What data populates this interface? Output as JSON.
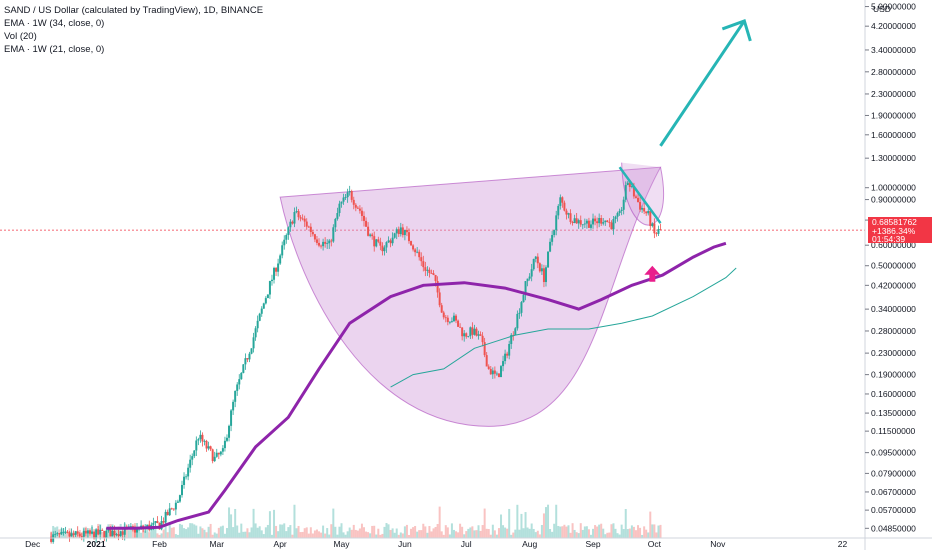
{
  "legend": {
    "title": "SAND / US Dollar (calculated by TradingView), 1D, BINANCE",
    "line2": "EMA · 1W (34, close, 0)",
    "line3": "Vol (20)",
    "line4": "EMA · 1W (21, close, 0)"
  },
  "price_label": {
    "value": "0.68581762",
    "change": "+1386.34%",
    "countdown": "01:54:39"
  },
  "colors": {
    "up": "#26a69a",
    "down": "#ef5350",
    "ema34": "#8e24aa",
    "ema21": "#26a69a",
    "pattern_fill": "#ce93d8",
    "arrow_teal": "#26b5b5",
    "arrow_pink": "#e91e8c",
    "price_tag": "#f23645"
  },
  "chart_data": {
    "type": "candlestick",
    "y_scale": "log",
    "currency": "USD",
    "ylim": [
      0.041,
      5.0
    ],
    "y_ticks": [
      "5.00000000",
      "4.20000000",
      "3.40000000",
      "2.80000000",
      "2.30000000",
      "1.90000000",
      "1.60000000",
      "1.30000000",
      "1.00000000",
      "0.90000000",
      "0.75000000",
      "0.60000000",
      "0.50000000",
      "0.42000000",
      "0.34000000",
      "0.28000000",
      "0.23000000",
      "0.19000000",
      "0.16000000",
      "0.13500000",
      "0.11500000",
      "0.09500000",
      "0.07900000",
      "0.06700000",
      "0.05700000",
      "0.04850000"
    ],
    "y_tick_values": [
      5.0,
      4.2,
      3.4,
      2.8,
      2.3,
      1.9,
      1.6,
      1.3,
      1.0,
      0.9,
      0.75,
      0.6,
      0.5,
      0.42,
      0.34,
      0.28,
      0.23,
      0.19,
      0.16,
      0.135,
      0.115,
      0.095,
      0.079,
      0.067,
      0.057,
      0.0485
    ],
    "x_ticks": [
      "Dec",
      "2021",
      "Feb",
      "Mar",
      "Apr",
      "May",
      "Jun",
      "Jul",
      "Aug",
      "Sep",
      "Oct",
      "Nov",
      "22"
    ],
    "x_tick_dates": [
      "2020-12-01",
      "2021-01-01",
      "2021-02-01",
      "2021-03-01",
      "2021-04-01",
      "2021-05-01",
      "2021-06-01",
      "2021-07-01",
      "2021-08-01",
      "2021-09-01",
      "2021-10-01",
      "2021-11-01",
      "2022-01-01"
    ],
    "last_price": 0.68581762,
    "price_path": [
      [
        "2020-12-10",
        0.045
      ],
      [
        "2021-01-01",
        0.046
      ],
      [
        "2021-01-20",
        0.048
      ],
      [
        "2021-02-01",
        0.05
      ],
      [
        "2021-02-10",
        0.062
      ],
      [
        "2021-02-20",
        0.11
      ],
      [
        "2021-02-28",
        0.09
      ],
      [
        "2021-03-04",
        0.095
      ],
      [
        "2021-03-10",
        0.16
      ],
      [
        "2021-03-18",
        0.25
      ],
      [
        "2021-03-25",
        0.38
      ],
      [
        "2021-04-01",
        0.55
      ],
      [
        "2021-04-08",
        0.8
      ],
      [
        "2021-04-14",
        0.72
      ],
      [
        "2021-04-20",
        0.62
      ],
      [
        "2021-04-25",
        0.6
      ],
      [
        "2021-04-30",
        0.85
      ],
      [
        "2021-05-05",
        0.95
      ],
      [
        "2021-05-10",
        0.82
      ],
      [
        "2021-05-15",
        0.65
      ],
      [
        "2021-05-20",
        0.58
      ],
      [
        "2021-05-25",
        0.63
      ],
      [
        "2021-05-30",
        0.7
      ],
      [
        "2021-06-04",
        0.62
      ],
      [
        "2021-06-10",
        0.5
      ],
      [
        "2021-06-15",
        0.45
      ],
      [
        "2021-06-20",
        0.32
      ],
      [
        "2021-06-25",
        0.31
      ],
      [
        "2021-06-30",
        0.27
      ],
      [
        "2021-07-04",
        0.28
      ],
      [
        "2021-07-08",
        0.26
      ],
      [
        "2021-07-12",
        0.2
      ],
      [
        "2021-07-16",
        0.185
      ],
      [
        "2021-07-20",
        0.22
      ],
      [
        "2021-07-25",
        0.3
      ],
      [
        "2021-07-30",
        0.42
      ],
      [
        "2021-08-04",
        0.54
      ],
      [
        "2021-08-08",
        0.45
      ],
      [
        "2021-08-12",
        0.66
      ],
      [
        "2021-08-16",
        0.9
      ],
      [
        "2021-08-20",
        0.78
      ],
      [
        "2021-08-25",
        0.74
      ],
      [
        "2021-09-01",
        0.73
      ],
      [
        "2021-09-06",
        0.76
      ],
      [
        "2021-09-10",
        0.72
      ],
      [
        "2021-09-14",
        0.78
      ],
      [
        "2021-09-18",
        1.06
      ],
      [
        "2021-09-20",
        0.98
      ],
      [
        "2021-09-24",
        0.85
      ],
      [
        "2021-09-28",
        0.78
      ],
      [
        "2021-10-01",
        0.66
      ],
      [
        "2021-10-04",
        0.686
      ]
    ],
    "ema34_path": [
      [
        "2021-01-06",
        0.0485
      ],
      [
        "2021-01-20",
        0.0485
      ],
      [
        "2021-02-01",
        0.049
      ],
      [
        "2021-02-10",
        0.052
      ],
      [
        "2021-02-25",
        0.056
      ],
      [
        "2021-03-05",
        0.068
      ],
      [
        "2021-03-20",
        0.1
      ],
      [
        "2021-04-05",
        0.13
      ],
      [
        "2021-04-20",
        0.2
      ],
      [
        "2021-05-05",
        0.3
      ],
      [
        "2021-05-25",
        0.38
      ],
      [
        "2021-06-10",
        0.42
      ],
      [
        "2021-06-30",
        0.43
      ],
      [
        "2021-07-20",
        0.41
      ],
      [
        "2021-08-10",
        0.37
      ],
      [
        "2021-08-25",
        0.34
      ],
      [
        "2021-09-05",
        0.37
      ],
      [
        "2021-09-20",
        0.42
      ],
      [
        "2021-10-05",
        0.46
      ],
      [
        "2021-10-20",
        0.54
      ],
      [
        "2021-10-30",
        0.59
      ],
      [
        "2021-11-05",
        0.61
      ]
    ],
    "ema21_path": [
      [
        "2021-05-25",
        0.17
      ],
      [
        "2021-06-05",
        0.19
      ],
      [
        "2021-06-20",
        0.2
      ],
      [
        "2021-07-05",
        0.24
      ],
      [
        "2021-07-25",
        0.27
      ],
      [
        "2021-08-10",
        0.285
      ],
      [
        "2021-08-30",
        0.285
      ],
      [
        "2021-09-15",
        0.3
      ],
      [
        "2021-09-30",
        0.32
      ],
      [
        "2021-10-20",
        0.38
      ],
      [
        "2021-11-05",
        0.45
      ],
      [
        "2021-11-10",
        0.49
      ]
    ]
  }
}
